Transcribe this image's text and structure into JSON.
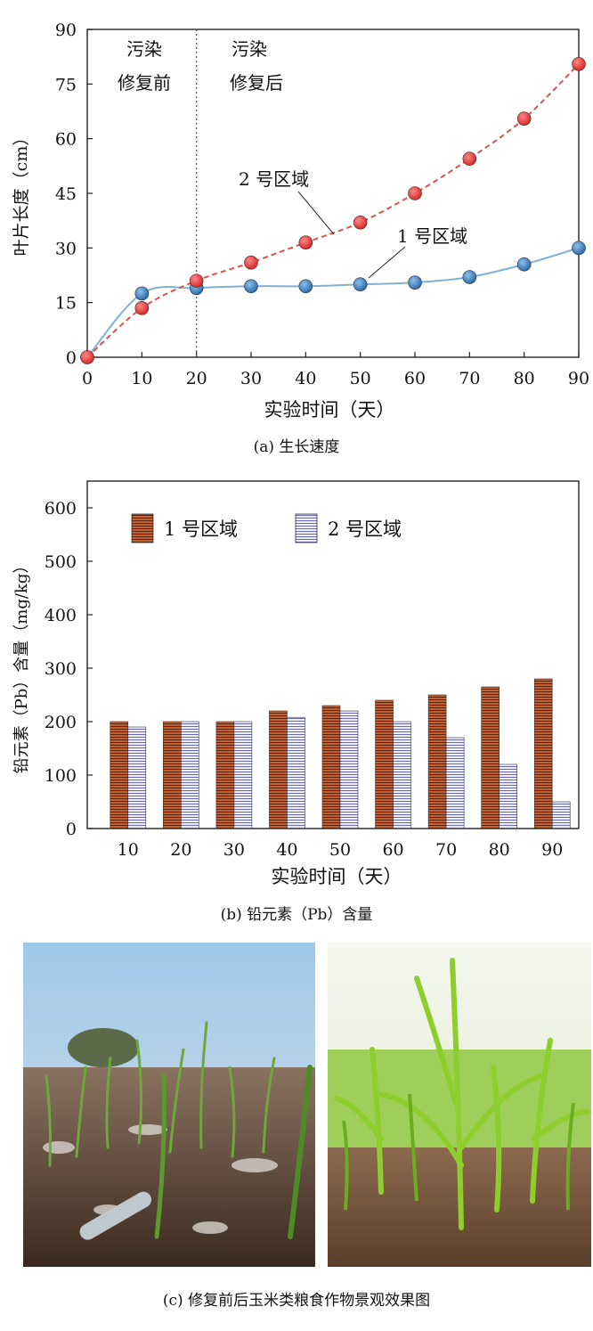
{
  "chart_data": [
    {
      "type": "line",
      "caption": "(a) 生长速度",
      "xlabel": "实验时间（天）",
      "ylabel": "叶片长度（cm）",
      "xlim": [
        0,
        90
      ],
      "ylim": [
        0,
        90
      ],
      "xticks": [
        "0",
        "10",
        "20",
        "30",
        "40",
        "50",
        "60",
        "70",
        "80",
        "90"
      ],
      "yticks": [
        "0",
        "15",
        "30",
        "45",
        "60",
        "75",
        "90"
      ],
      "grid": false,
      "divider_x": 20,
      "regions": {
        "before": [
          "污染",
          "修复前"
        ],
        "after": [
          "污染",
          "修复后"
        ]
      },
      "series": [
        {
          "name": "1 号区域",
          "color": "#3a7bbf",
          "line_color": "#7fb3d5",
          "x": [
            0,
            10,
            20,
            30,
            40,
            50,
            60,
            70,
            80,
            90
          ],
          "y": [
            0,
            17.5,
            19,
            19.5,
            19.5,
            20,
            20.5,
            22,
            25.5,
            30
          ]
        },
        {
          "name": "2 号区域",
          "color": "#e53030",
          "line_color": "#d9534f",
          "x": [
            0,
            10,
            20,
            30,
            40,
            50,
            60,
            70,
            80,
            90
          ],
          "y": [
            0,
            13.5,
            21,
            26,
            31.5,
            37,
            45,
            54.5,
            65.5,
            80.5
          ]
        }
      ]
    },
    {
      "type": "bar",
      "caption": "(b) 铅元素（Pb）含量",
      "xlabel": "实验时间（天）",
      "ylabel": "铅元素（Pb）含量（mg/kg）",
      "ylim": [
        0,
        650
      ],
      "yticks": [
        "0",
        "100",
        "200",
        "300",
        "400",
        "500",
        "600"
      ],
      "categories": [
        "10",
        "20",
        "30",
        "40",
        "50",
        "60",
        "70",
        "80",
        "90"
      ],
      "legend": "top-left",
      "series": [
        {
          "name": "1 号区域",
          "color": "#b0562a",
          "values": [
            200,
            200,
            200,
            220,
            230,
            240,
            250,
            265,
            280
          ]
        },
        {
          "name": "2 号区域",
          "color": "#8f8fd2",
          "values": [
            190,
            200,
            200,
            208,
            220,
            200,
            170,
            120,
            50
          ]
        }
      ]
    }
  ],
  "photos": {
    "caption": "(c) 修复前后玉米类粮食作物景观效果图"
  }
}
